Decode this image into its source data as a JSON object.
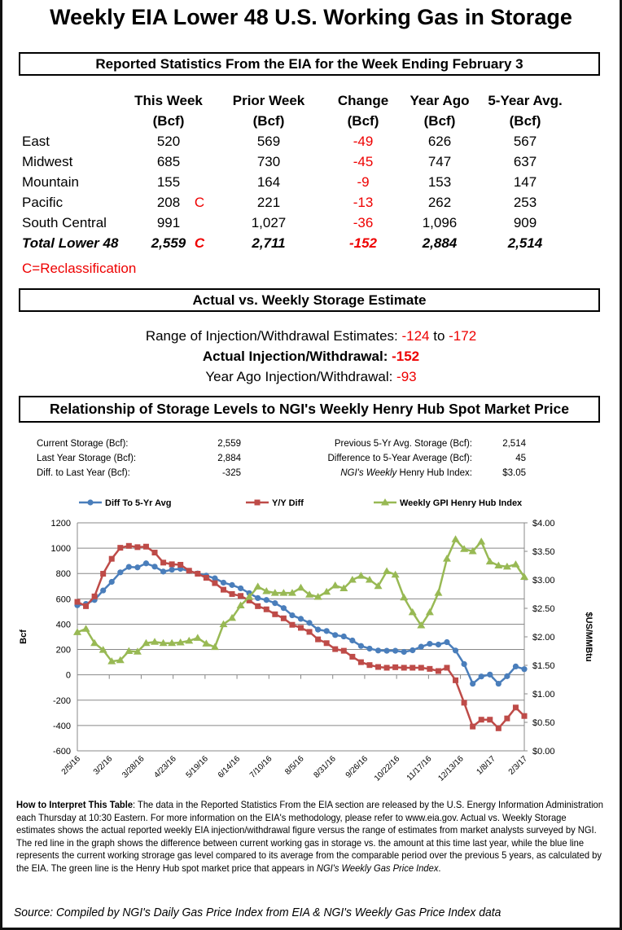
{
  "title": "Weekly EIA Lower 48 U.S. Working Gas in Storage",
  "reported": {
    "heading": "Reported Statistics From the EIA for the Week Ending February 3",
    "columns": [
      [
        "This Week",
        "(Bcf)"
      ],
      [
        "Prior Week",
        "(Bcf)"
      ],
      [
        "Change",
        "(Bcf)"
      ],
      [
        "Year Ago",
        "(Bcf)"
      ],
      [
        "5-Year Avg.",
        "(Bcf)"
      ]
    ],
    "rows": [
      {
        "region": "East",
        "this_week": "520",
        "flag": "",
        "prior": "569",
        "change": "-49",
        "year_ago": "626",
        "avg5": "567"
      },
      {
        "region": "Midwest",
        "this_week": "685",
        "flag": "",
        "prior": "730",
        "change": "-45",
        "year_ago": "747",
        "avg5": "637"
      },
      {
        "region": "Mountain",
        "this_week": "155",
        "flag": "",
        "prior": "164",
        "change": "-9",
        "year_ago": "153",
        "avg5": "147"
      },
      {
        "region": "Pacific",
        "this_week": "208",
        "flag": "C",
        "prior": "221",
        "change": "-13",
        "year_ago": "262",
        "avg5": "253"
      },
      {
        "region": "South Central",
        "this_week": "991",
        "flag": "",
        "prior": "1,027",
        "change": "-36",
        "year_ago": "1,096",
        "avg5": "909"
      },
      {
        "region": "Total Lower 48",
        "this_week": "2,559",
        "flag": "C",
        "prior": "2,711",
        "change": "-152",
        "year_ago": "2,884",
        "avg5": "2,514"
      }
    ],
    "footnote": "C=Reclassification"
  },
  "estimate": {
    "heading": "Actual vs. Weekly Storage Estimate",
    "range_label": "Range of Injection/Withdrawal Estimates: ",
    "range_low": "-124",
    "range_to": " to ",
    "range_high": "-172",
    "actual_label": "Actual Injection/Withdrawal: ",
    "actual_value": "-152",
    "year_ago_label": "Year Ago Injection/Withdrawal: ",
    "year_ago_value": "-93"
  },
  "relationship": {
    "heading": "Relationship of Storage Levels to NGI's Weekly Henry Hub Spot Market Price",
    "left": [
      [
        "Current Storage (Bcf):",
        "2,559"
      ],
      [
        "Last Year Storage (Bcf):",
        "2,884"
      ],
      [
        "Diff. to Last Year (Bcf):",
        "-325"
      ]
    ],
    "right": [
      [
        "Previous 5-Yr Avg. Storage (Bcf):",
        "2,514"
      ],
      [
        "Difference to 5-Year Average (Bcf):",
        "45"
      ]
    ],
    "index_label_italic": "NGI's Weekly",
    "index_label": " Henry Hub Index:",
    "index_value": "$3.05"
  },
  "chart_data": {
    "type": "line",
    "ylabel": "Bcf",
    "y2label": "$US/MMBtu",
    "ylim": [
      -600,
      1200
    ],
    "y2lim": [
      0,
      4
    ],
    "yticks": [
      "1200",
      "1000",
      "800",
      "600",
      "400",
      "200",
      "0",
      "-200",
      "-400",
      "-600"
    ],
    "y2ticks": [
      "$4.00",
      "$3.50",
      "$3.00",
      "$2.50",
      "$2.00",
      "$1.50",
      "$1.00",
      "$0.50",
      "$0.00"
    ],
    "xticks": [
      "2/5/16",
      "3/2/16",
      "3/28/16",
      "4/23/16",
      "5/19/16",
      "6/14/16",
      "7/10/16",
      "8/5/16",
      "8/31/16",
      "9/26/16",
      "10/22/16",
      "11/17/16",
      "12/13/16",
      "1/8/17",
      "2/3/17"
    ],
    "grid": true,
    "legend": "top",
    "x": [
      "2/5/16",
      "2/12/16",
      "2/19/16",
      "2/26/16",
      "3/4/16",
      "3/11/16",
      "3/18/16",
      "3/25/16",
      "4/1/16",
      "4/8/16",
      "4/15/16",
      "4/22/16",
      "4/29/16",
      "5/6/16",
      "5/13/16",
      "5/20/16",
      "5/27/16",
      "6/3/16",
      "6/10/16",
      "6/17/16",
      "6/24/16",
      "7/1/16",
      "7/8/16",
      "7/15/16",
      "7/22/16",
      "7/29/16",
      "8/5/16",
      "8/12/16",
      "8/19/16",
      "8/26/16",
      "9/2/16",
      "9/9/16",
      "9/16/16",
      "9/23/16",
      "9/30/16",
      "10/7/16",
      "10/14/16",
      "10/21/16",
      "10/28/16",
      "11/4/16",
      "11/11/16",
      "11/18/16",
      "11/25/16",
      "12/2/16",
      "12/9/16",
      "12/16/16",
      "12/23/16",
      "12/30/16",
      "1/6/17",
      "1/13/17",
      "1/20/17",
      "1/27/17",
      "2/3/17"
    ],
    "series": [
      {
        "name": "Diff To 5-Yr Avg",
        "color": "#4a7ebb",
        "marker": "circle",
        "axis": "left",
        "values": [
          549,
          560,
          591,
          666,
          734,
          809,
          852,
          848,
          880,
          854,
          815,
          830,
          837,
          820,
          800,
          783,
          762,
          728,
          709,
          683,
          645,
          606,
          591,
          566,
          527,
          470,
          442,
          410,
          357,
          346,
          314,
          303,
          271,
          228,
          207,
          192,
          190,
          190,
          181,
          194,
          222,
          245,
          239,
          258,
          192,
          85,
          -70,
          -13,
          2,
          -70,
          -11,
          66,
          45
        ]
      },
      {
        "name": "Y/Y Diff",
        "color": "#be4b48",
        "marker": "square",
        "axis": "left",
        "values": [
          576,
          542,
          619,
          798,
          916,
          1003,
          1018,
          1008,
          1012,
          965,
          886,
          873,
          869,
          822,
          798,
          766,
          724,
          672,
          638,
          623,
          587,
          542,
          517,
          478,
          446,
          395,
          371,
          339,
          280,
          250,
          203,
          190,
          143,
          100,
          77,
          62,
          56,
          60,
          56,
          56,
          56,
          47,
          30,
          56,
          -43,
          -220,
          -408,
          -354,
          -354,
          -422,
          -344,
          -258,
          -325
        ]
      },
      {
        "name": "Weekly GPI Henry Hub Index",
        "color": "#98b954",
        "marker": "triangle",
        "axis": "right",
        "values": [
          2.08,
          2.14,
          1.89,
          1.77,
          1.57,
          1.59,
          1.75,
          1.74,
          1.89,
          1.91,
          1.89,
          1.89,
          1.9,
          1.93,
          1.98,
          1.88,
          1.82,
          2.22,
          2.33,
          2.55,
          2.7,
          2.88,
          2.8,
          2.77,
          2.77,
          2.77,
          2.86,
          2.74,
          2.7,
          2.79,
          2.9,
          2.85,
          3.0,
          3.07,
          3.0,
          2.89,
          3.15,
          3.09,
          2.69,
          2.43,
          2.2,
          2.43,
          2.77,
          3.37,
          3.71,
          3.54,
          3.5,
          3.67,
          3.32,
          3.25,
          3.23,
          3.27,
          3.05
        ]
      }
    ]
  },
  "notes": {
    "bold": "How to Interpret This Table",
    "text": ": The data in the Reported Statistics From the EIA section are released by the U.S. Energy Information Administration each Thursday at 10:30 Eastern. For more information on the EIA's methodology, please refer to www.eia.gov.  Actual vs. Weekly Storage estimates shows the actual reported weekly EIA injection/withdrawal figure versus the range of estimates from market analysts surveyed by NGI. The red line in the graph shows the difference between current working gas in storage vs. the amount at this time last year, while the blue line represents the current working strorage gas level  compared to its average from the comparable period over the previous 5 years, as calculated by the EIA. The green line is the Henry Hub spot market price that appears in ",
    "italic": "NGI's Weekly Gas Price Index",
    "end": "."
  },
  "source": "Source: Compiled by NGI's Daily Gas Price Index from EIA & NGI's Weekly Gas Price Index data"
}
